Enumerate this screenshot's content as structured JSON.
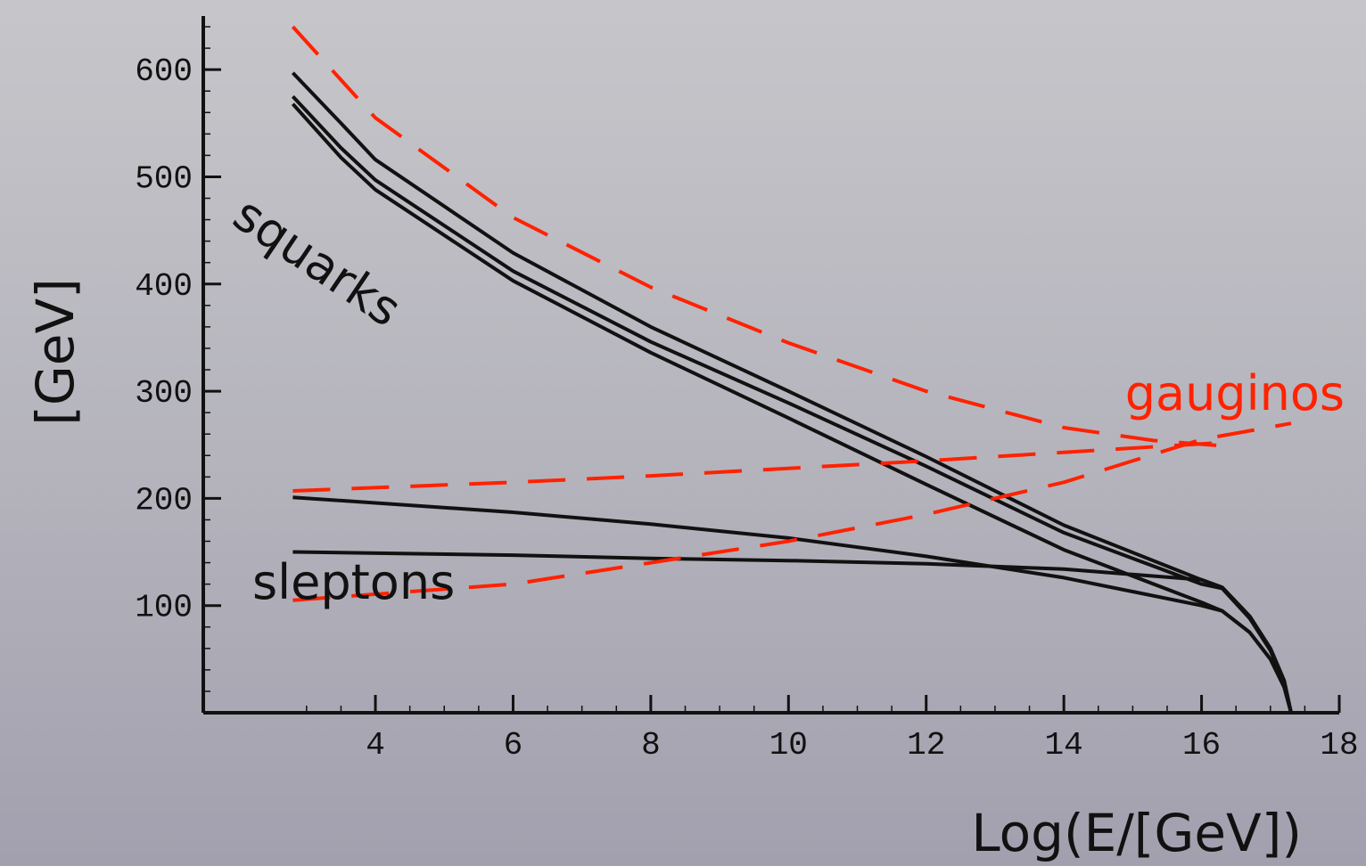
{
  "chart_data": {
    "type": "line",
    "title": "",
    "xlabel": "Log(E/[GeV])",
    "ylabel": "[GeV]",
    "xlim": [
      1.5,
      18
    ],
    "ylim": [
      0,
      650
    ],
    "xticks": [
      4,
      6,
      8,
      10,
      12,
      14,
      16,
      18
    ],
    "yticks": [
      100,
      200,
      300,
      400,
      500,
      600
    ],
    "grid": false,
    "colors": {
      "solid": "#111111",
      "dashed": "#ff2200"
    },
    "annotations": [
      {
        "text": "squarks",
        "color": "#111111"
      },
      {
        "text": "sleptons",
        "color": "#111111"
      },
      {
        "text": "gauginos",
        "color": "#ff2200"
      }
    ],
    "series": [
      {
        "style": "solid",
        "points": [
          [
            2.8,
            597
          ],
          [
            3.5,
            550
          ],
          [
            4,
            516
          ],
          [
            6,
            429
          ],
          [
            8,
            360
          ],
          [
            10,
            300
          ],
          [
            12,
            239
          ],
          [
            14,
            175
          ],
          [
            16,
            124
          ],
          [
            16.3,
            117
          ],
          [
            16.7,
            90
          ],
          [
            17,
            60
          ],
          [
            17.2,
            30
          ],
          [
            17.3,
            0
          ]
        ]
      },
      {
        "style": "solid",
        "points": [
          [
            2.8,
            575
          ],
          [
            3.5,
            527
          ],
          [
            4,
            497
          ],
          [
            6,
            412
          ],
          [
            8,
            346
          ],
          [
            10,
            289
          ],
          [
            12,
            230
          ],
          [
            14,
            168
          ],
          [
            16,
            120
          ],
          [
            16.3,
            116
          ],
          [
            16.7,
            88
          ],
          [
            17,
            58
          ],
          [
            17.2,
            28
          ],
          [
            17.3,
            0
          ]
        ]
      },
      {
        "style": "solid",
        "points": [
          [
            2.8,
            568
          ],
          [
            3.5,
            518
          ],
          [
            4,
            488
          ],
          [
            6,
            403
          ],
          [
            8,
            336
          ],
          [
            10,
            275
          ],
          [
            12,
            213
          ],
          [
            14,
            152
          ],
          [
            16,
            103
          ],
          [
            16.3,
            95
          ],
          [
            16.7,
            75
          ],
          [
            17,
            50
          ],
          [
            17.2,
            24
          ],
          [
            17.3,
            0
          ]
        ]
      },
      {
        "style": "solid",
        "points": [
          [
            2.8,
            201
          ],
          [
            6,
            187
          ],
          [
            8,
            176
          ],
          [
            10,
            163
          ],
          [
            12,
            146
          ],
          [
            14,
            126
          ],
          [
            16,
            100
          ],
          [
            16.3,
            95
          ],
          [
            16.7,
            75
          ],
          [
            17,
            50
          ],
          [
            17.2,
            24
          ],
          [
            17.3,
            0
          ]
        ]
      },
      {
        "style": "solid",
        "points": [
          [
            2.8,
            150
          ],
          [
            6,
            147
          ],
          [
            8,
            144
          ],
          [
            10,
            142
          ],
          [
            12,
            139
          ],
          [
            14,
            134
          ],
          [
            16,
            124
          ],
          [
            16.3,
            117
          ],
          [
            16.7,
            90
          ],
          [
            17,
            60
          ],
          [
            17.2,
            30
          ],
          [
            17.3,
            0
          ]
        ]
      },
      {
        "style": "dashed",
        "points": [
          [
            2.8,
            640
          ],
          [
            4,
            555
          ],
          [
            6,
            462
          ],
          [
            8,
            397
          ],
          [
            10,
            345
          ],
          [
            12,
            300
          ],
          [
            14,
            266
          ],
          [
            15.3,
            254
          ],
          [
            16.3,
            249
          ]
        ]
      },
      {
        "style": "dashed",
        "points": [
          [
            2.8,
            207
          ],
          [
            6,
            215
          ],
          [
            8,
            221
          ],
          [
            10,
            228
          ],
          [
            12,
            235
          ],
          [
            14,
            243
          ],
          [
            16.3,
            252
          ]
        ]
      },
      {
        "style": "dashed",
        "points": [
          [
            2.8,
            105
          ],
          [
            6,
            120
          ],
          [
            8,
            140
          ],
          [
            10,
            160
          ],
          [
            12,
            185
          ],
          [
            14,
            215
          ],
          [
            16,
            255
          ],
          [
            17.3,
            270
          ]
        ]
      }
    ]
  }
}
